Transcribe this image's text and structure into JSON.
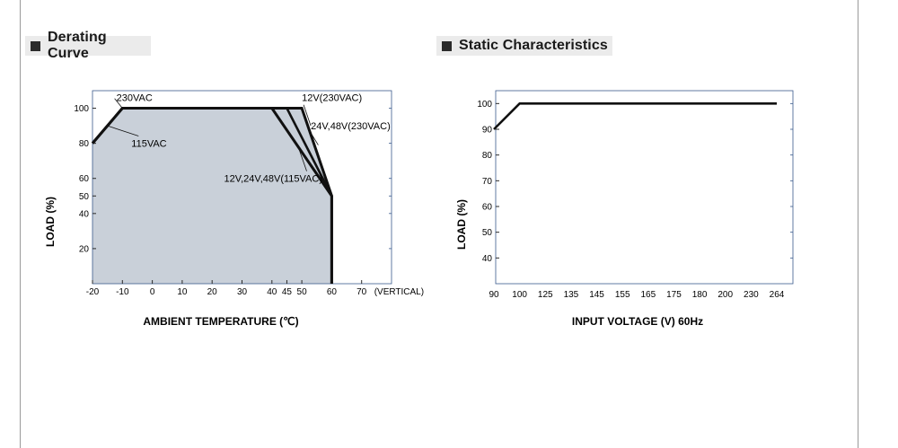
{
  "sections": {
    "left_title": "Derating Curve",
    "right_title": "Static Characteristics"
  },
  "chart_data": [
    {
      "type": "area",
      "title": "Derating Curve",
      "xlabel": "AMBIENT TEMPERATURE (℃)",
      "ylabel": "LOAD (%)",
      "x_ticks": [
        "-20",
        "-10",
        "0",
        "10",
        "20",
        "30",
        "40",
        "45",
        "50",
        "60",
        "70"
      ],
      "x_tick_values": [
        -20,
        -10,
        0,
        10,
        20,
        30,
        40,
        45,
        50,
        60,
        70
      ],
      "x_tick_suffix": "(VERTICAL)",
      "y_ticks": [
        "20",
        "40",
        "50",
        "60",
        "80",
        "100"
      ],
      "y_tick_values": [
        20,
        40,
        50,
        60,
        80,
        100
      ],
      "xlim": [
        -20,
        80
      ],
      "ylim": [
        0,
        110
      ],
      "shaded_fill": "#c9d0d9",
      "series": [
        {
          "name": "230VAC",
          "x": [
            -20,
            -10,
            50,
            60,
            60
          ],
          "y": [
            80,
            100,
            100,
            50,
            0
          ]
        },
        {
          "name": "115VAC",
          "x": [
            -20,
            -10,
            40,
            60,
            60
          ],
          "y": [
            80,
            100,
            100,
            50,
            0
          ]
        },
        {
          "name": "12V(230VAC)",
          "x": [
            50,
            60
          ],
          "y": [
            100,
            50
          ]
        },
        {
          "name": "24V,48V(230VAC)",
          "x": [
            45,
            60
          ],
          "y": [
            100,
            50
          ]
        },
        {
          "name": "12V,24V,48V(115VAC)",
          "x": [
            40,
            60
          ],
          "y": [
            100,
            50
          ]
        }
      ],
      "annotations": [
        {
          "text": "230VAC",
          "x": -12,
          "y": 104,
          "target_x": -10,
          "target_y": 100
        },
        {
          "text": "115VAC",
          "x": -7,
          "y": 78,
          "target_x": -15,
          "target_y": 90
        },
        {
          "text": "12V(230VAC)",
          "x": 50,
          "y": 104,
          "target_x": 53,
          "target_y": 90
        },
        {
          "text": "24V,48V(230VAC)",
          "x": 53,
          "y": 88,
          "target_x": 55.5,
          "target_y": 79
        },
        {
          "text": "12V,24V,48V(115VAC)",
          "x": 24,
          "y": 58,
          "target_x": 49,
          "target_y": 77
        }
      ]
    },
    {
      "type": "line",
      "title": "Static Characteristics",
      "xlabel": "INPUT VOLTAGE (V) 60Hz",
      "ylabel": "LOAD (%)",
      "categories": [
        "90",
        "100",
        "125",
        "135",
        "145",
        "155",
        "165",
        "175",
        "180",
        "200",
        "230",
        "264"
      ],
      "y_ticks": [
        "40",
        "50",
        "60",
        "70",
        "80",
        "90",
        "100"
      ],
      "y_tick_values": [
        40,
        50,
        60,
        70,
        80,
        90,
        100
      ],
      "ylim": [
        30,
        105
      ],
      "series": [
        {
          "name": "",
          "x": [
            "90",
            "100",
            "264"
          ],
          "y": [
            90,
            100,
            100
          ]
        }
      ]
    }
  ]
}
